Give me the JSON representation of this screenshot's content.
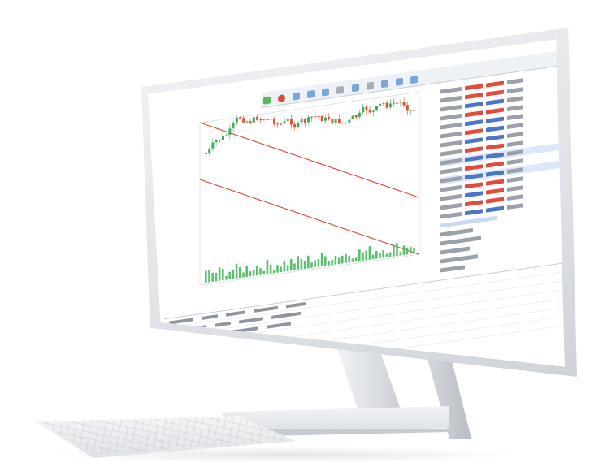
{
  "scene": {
    "description_type": "product-photo",
    "colors": {
      "bull": "#3fae5a",
      "bear": "#e8502f",
      "channel": "#e23b2e",
      "volume": "#58c26b",
      "accent": "#4d77c6"
    },
    "toolbar_icons": [
      "new-chart-icon",
      "record-icon",
      "timeframe-icon",
      "zoom-in-icon",
      "zoom-out-icon",
      "grid-icon",
      "indicator-icon",
      "gear-icon"
    ]
  }
}
